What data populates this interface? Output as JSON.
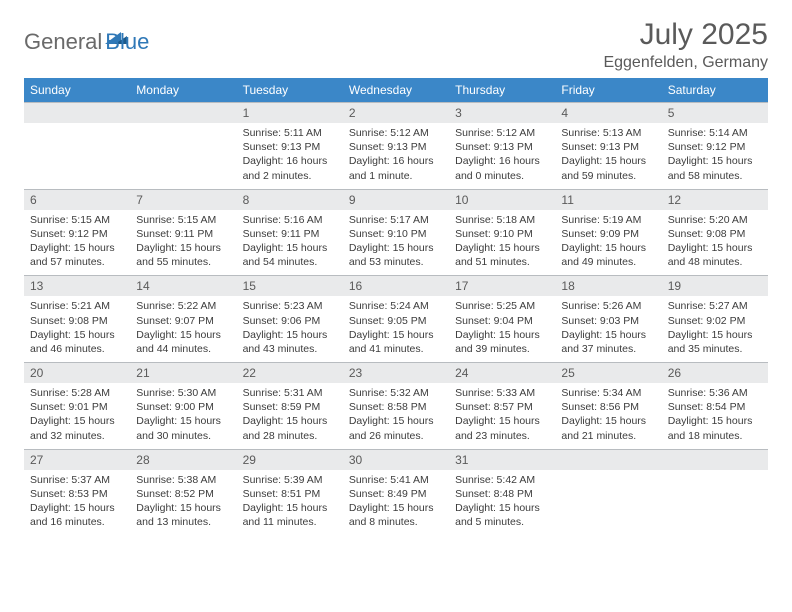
{
  "logo": {
    "part1": "General",
    "part2": "Blue"
  },
  "title": "July 2025",
  "location": "Eggenfelden, Germany",
  "colors": {
    "header_bg": "#3b87c8",
    "header_text": "#ffffff",
    "daynum_bg": "#e9eaeb",
    "daynum_border": "#b8bcc0",
    "text_gray": "#5a5a5a",
    "logo_blue": "#2f78b7"
  },
  "daynames": [
    "Sunday",
    "Monday",
    "Tuesday",
    "Wednesday",
    "Thursday",
    "Friday",
    "Saturday"
  ],
  "weeks": [
    [
      null,
      null,
      {
        "n": "1",
        "sr": "5:11 AM",
        "ss": "9:13 PM",
        "dl": "16 hours and 2 minutes."
      },
      {
        "n": "2",
        "sr": "5:12 AM",
        "ss": "9:13 PM",
        "dl": "16 hours and 1 minute."
      },
      {
        "n": "3",
        "sr": "5:12 AM",
        "ss": "9:13 PM",
        "dl": "16 hours and 0 minutes."
      },
      {
        "n": "4",
        "sr": "5:13 AM",
        "ss": "9:13 PM",
        "dl": "15 hours and 59 minutes."
      },
      {
        "n": "5",
        "sr": "5:14 AM",
        "ss": "9:12 PM",
        "dl": "15 hours and 58 minutes."
      }
    ],
    [
      {
        "n": "6",
        "sr": "5:15 AM",
        "ss": "9:12 PM",
        "dl": "15 hours and 57 minutes."
      },
      {
        "n": "7",
        "sr": "5:15 AM",
        "ss": "9:11 PM",
        "dl": "15 hours and 55 minutes."
      },
      {
        "n": "8",
        "sr": "5:16 AM",
        "ss": "9:11 PM",
        "dl": "15 hours and 54 minutes."
      },
      {
        "n": "9",
        "sr": "5:17 AM",
        "ss": "9:10 PM",
        "dl": "15 hours and 53 minutes."
      },
      {
        "n": "10",
        "sr": "5:18 AM",
        "ss": "9:10 PM",
        "dl": "15 hours and 51 minutes."
      },
      {
        "n": "11",
        "sr": "5:19 AM",
        "ss": "9:09 PM",
        "dl": "15 hours and 49 minutes."
      },
      {
        "n": "12",
        "sr": "5:20 AM",
        "ss": "9:08 PM",
        "dl": "15 hours and 48 minutes."
      }
    ],
    [
      {
        "n": "13",
        "sr": "5:21 AM",
        "ss": "9:08 PM",
        "dl": "15 hours and 46 minutes."
      },
      {
        "n": "14",
        "sr": "5:22 AM",
        "ss": "9:07 PM",
        "dl": "15 hours and 44 minutes."
      },
      {
        "n": "15",
        "sr": "5:23 AM",
        "ss": "9:06 PM",
        "dl": "15 hours and 43 minutes."
      },
      {
        "n": "16",
        "sr": "5:24 AM",
        "ss": "9:05 PM",
        "dl": "15 hours and 41 minutes."
      },
      {
        "n": "17",
        "sr": "5:25 AM",
        "ss": "9:04 PM",
        "dl": "15 hours and 39 minutes."
      },
      {
        "n": "18",
        "sr": "5:26 AM",
        "ss": "9:03 PM",
        "dl": "15 hours and 37 minutes."
      },
      {
        "n": "19",
        "sr": "5:27 AM",
        "ss": "9:02 PM",
        "dl": "15 hours and 35 minutes."
      }
    ],
    [
      {
        "n": "20",
        "sr": "5:28 AM",
        "ss": "9:01 PM",
        "dl": "15 hours and 32 minutes."
      },
      {
        "n": "21",
        "sr": "5:30 AM",
        "ss": "9:00 PM",
        "dl": "15 hours and 30 minutes."
      },
      {
        "n": "22",
        "sr": "5:31 AM",
        "ss": "8:59 PM",
        "dl": "15 hours and 28 minutes."
      },
      {
        "n": "23",
        "sr": "5:32 AM",
        "ss": "8:58 PM",
        "dl": "15 hours and 26 minutes."
      },
      {
        "n": "24",
        "sr": "5:33 AM",
        "ss": "8:57 PM",
        "dl": "15 hours and 23 minutes."
      },
      {
        "n": "25",
        "sr": "5:34 AM",
        "ss": "8:56 PM",
        "dl": "15 hours and 21 minutes."
      },
      {
        "n": "26",
        "sr": "5:36 AM",
        "ss": "8:54 PM",
        "dl": "15 hours and 18 minutes."
      }
    ],
    [
      {
        "n": "27",
        "sr": "5:37 AM",
        "ss": "8:53 PM",
        "dl": "15 hours and 16 minutes."
      },
      {
        "n": "28",
        "sr": "5:38 AM",
        "ss": "8:52 PM",
        "dl": "15 hours and 13 minutes."
      },
      {
        "n": "29",
        "sr": "5:39 AM",
        "ss": "8:51 PM",
        "dl": "15 hours and 11 minutes."
      },
      {
        "n": "30",
        "sr": "5:41 AM",
        "ss": "8:49 PM",
        "dl": "15 hours and 8 minutes."
      },
      {
        "n": "31",
        "sr": "5:42 AM",
        "ss": "8:48 PM",
        "dl": "15 hours and 5 minutes."
      },
      null,
      null
    ]
  ],
  "labels": {
    "sunrise": "Sunrise: ",
    "sunset": "Sunset: ",
    "daylight": "Daylight: "
  }
}
